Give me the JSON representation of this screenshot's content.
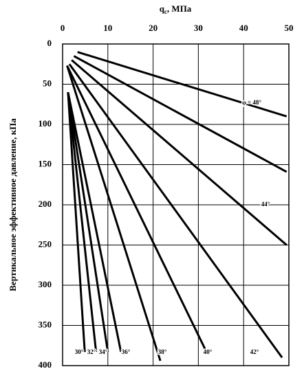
{
  "chart_data": {
    "type": "line",
    "x_label": {
      "main": "q",
      "sub": "c",
      "rest": ", МПа"
    },
    "y_label": "Вертикальное эффективное давление, кПа",
    "xlim": [
      0,
      50
    ],
    "xticks": [
      0,
      10,
      20,
      30,
      40,
      50
    ],
    "ylim": [
      0,
      400
    ],
    "yticks": [
      0,
      50,
      100,
      150,
      200,
      250,
      300,
      350,
      400
    ],
    "y_inverted": true,
    "x_axis_top": true,
    "grid": true,
    "color": "#000000",
    "series": [
      {
        "name": "φ = 48°",
        "x": [
          3.3,
          49.5
        ],
        "values": [
          10,
          90
        ]
      },
      {
        "x": [
          2.5,
          49.5
        ],
        "values": [
          15,
          159
        ]
      },
      {
        "name": "44°",
        "x": [
          2.0,
          49.5
        ],
        "values": [
          20,
          250
        ]
      },
      {
        "name": "42°",
        "x": [
          1.5,
          48.5
        ],
        "values": [
          25,
          390
        ]
      },
      {
        "name": "40°",
        "x": [
          1.0,
          31.8
        ],
        "values": [
          27,
          383
        ]
      },
      {
        "name": "38°",
        "x": [
          1.0,
          21.6
        ],
        "values": [
          27,
          394
        ]
      },
      {
        "name": "36°",
        "x": [
          1.2,
          12.9
        ],
        "values": [
          60,
          383
        ]
      },
      {
        "name": "34°",
        "x": [
          1.2,
          10.0
        ],
        "values": [
          60,
          383
        ]
      },
      {
        "name": "32°",
        "x": [
          1.2,
          7.4
        ],
        "values": [
          60,
          383
        ]
      },
      {
        "name": "30°",
        "x": [
          1.2,
          4.9
        ],
        "values": [
          60,
          383
        ]
      }
    ]
  }
}
